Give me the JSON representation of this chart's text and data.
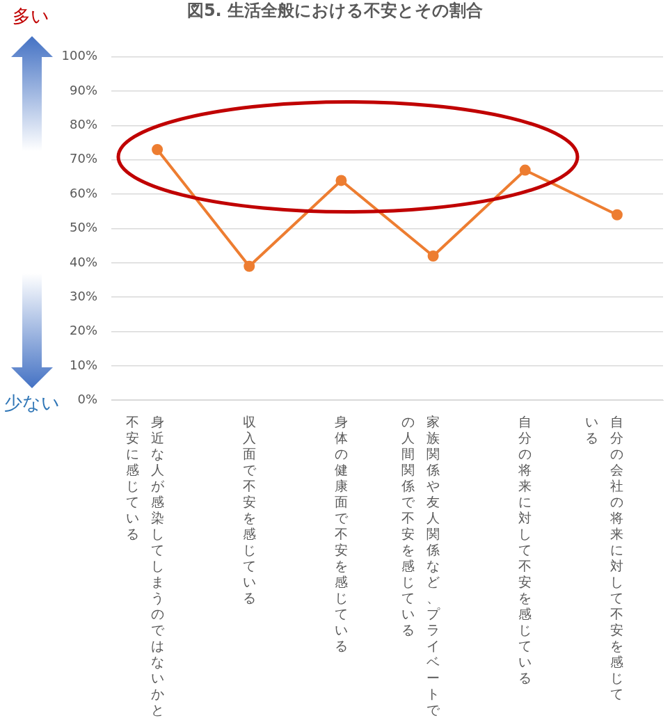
{
  "chart_data": {
    "type": "line",
    "title": "図5. 生活全般における不安とその割合",
    "categories": [
      "身近な人が感染してしまうのではないかと不安に感じている",
      "収入面で不安を感じている",
      "身体の健康面で不安を感じている",
      "家族関係や友人関係など、プライベートでの人間関係で不安を感じている",
      "自分の将来に対して不安を感じている",
      "自分の会社の将来に対して不安を感じている"
    ],
    "series": [
      {
        "color": "#ed7d31",
        "values": [
          73,
          39,
          64,
          42,
          67,
          54
        ]
      }
    ],
    "ylim": [
      0,
      100
    ],
    "yticks": [
      {
        "value": 0,
        "label": "0%"
      },
      {
        "value": 10,
        "label": "10%"
      },
      {
        "value": 20,
        "label": "20%"
      },
      {
        "value": 30,
        "label": "30%"
      },
      {
        "value": 40,
        "label": "40%"
      },
      {
        "value": 50,
        "label": "50%"
      },
      {
        "value": 60,
        "label": "60%"
      },
      {
        "value": 70,
        "label": "70%"
      },
      {
        "value": 80,
        "label": "80%"
      },
      {
        "value": 90,
        "label": "90%"
      },
      {
        "value": 100,
        "label": "100%"
      }
    ],
    "grid": "y",
    "legend": false,
    "marker": "circle",
    "line_style": "solid",
    "annotations": [
      "多い",
      "少ない"
    ]
  }
}
